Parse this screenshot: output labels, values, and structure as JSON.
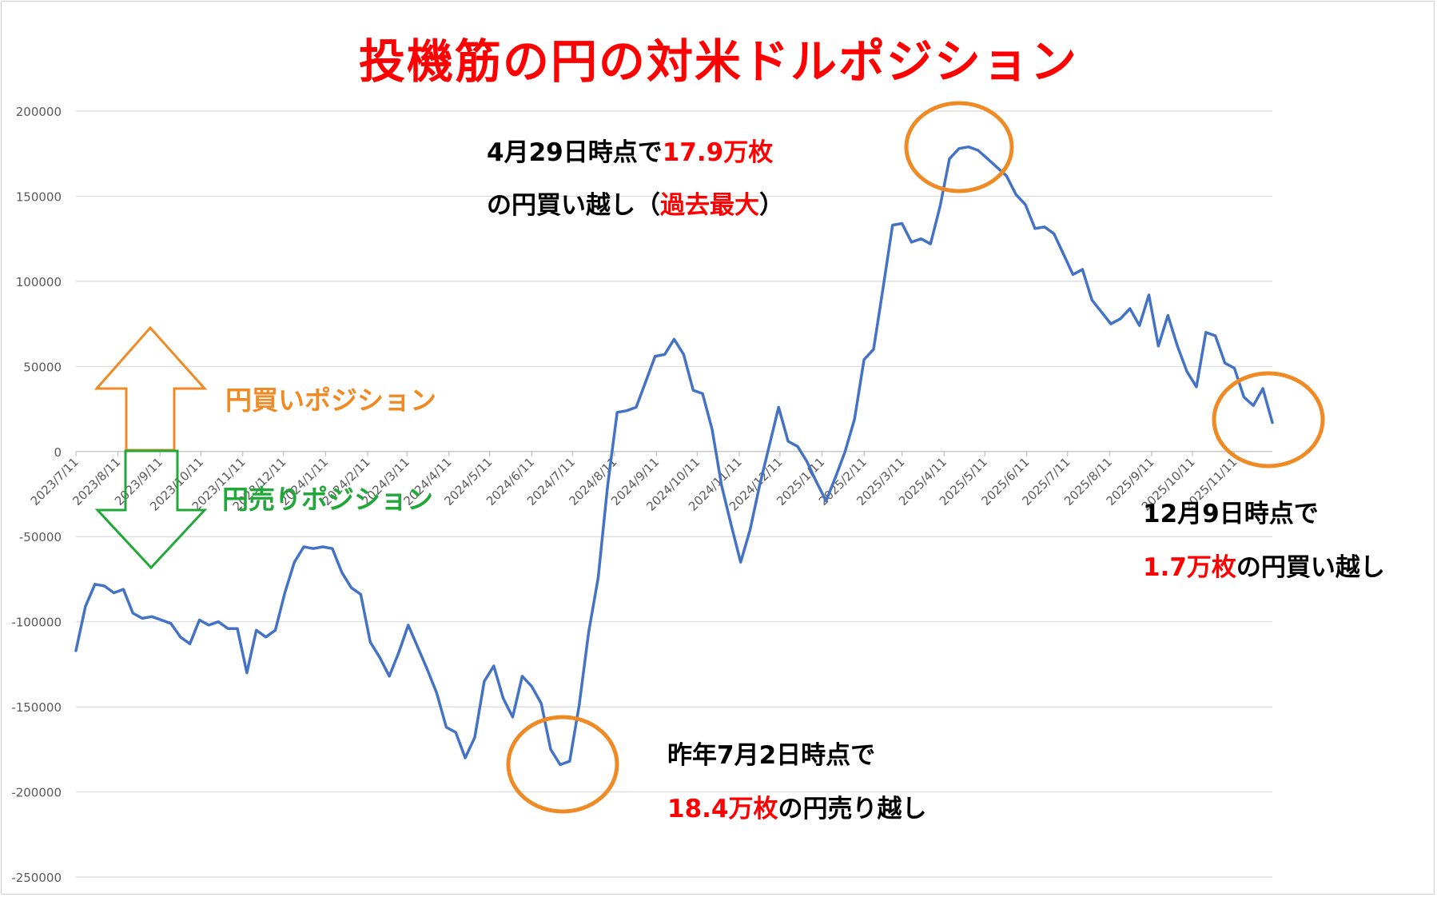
{
  "chart_data": {
    "type": "line",
    "title": "投機筋の円の対米ドルポジション",
    "ylim": [
      -250000,
      200000
    ],
    "y_ticks": [
      200000,
      150000,
      100000,
      50000,
      0,
      -50000,
      -100000,
      -150000,
      -200000,
      -250000
    ],
    "x_tick_labels": [
      "2023/7/11",
      "2023/8/11",
      "2023/9/11",
      "2023/10/11",
      "2023/11/11",
      "2023/12/11",
      "2024/1/11",
      "2024/2/11",
      "2024/3/11",
      "2024/4/11",
      "2024/5/11",
      "2024/6/11",
      "2024/7/11",
      "2024/8/11",
      "2024/9/11",
      "2024/10/11",
      "2024/11/11",
      "2024/12/11",
      "2025/1/11",
      "2025/2/11",
      "2025/3/11",
      "2025/4/11",
      "2025/5/11",
      "2025/6/11",
      "2025/7/11",
      "2025/8/11",
      "2025/9/11",
      "2025/10/11",
      "2025/11/11"
    ],
    "x_start": "2023/7/11",
    "x_end": "2025/12/9",
    "grid": true,
    "series": [
      {
        "color": "#4472c4",
        "x": [
          "2023/7/11",
          "2023/7/18",
          "2023/7/25",
          "2023/8/1",
          "2023/8/8",
          "2023/8/15",
          "2023/8/22",
          "2023/8/29",
          "2023/9/5",
          "2023/9/12",
          "2023/9/19",
          "2023/9/26",
          "2023/10/3",
          "2023/10/10",
          "2023/10/17",
          "2023/10/24",
          "2023/10/31",
          "2023/11/7",
          "2023/11/14",
          "2023/11/21",
          "2023/11/28",
          "2023/12/5",
          "2023/12/12",
          "2023/12/19",
          "2023/12/26",
          "2024/1/2",
          "2024/1/9",
          "2024/1/16",
          "2024/1/23",
          "2024/1/30",
          "2024/2/6",
          "2024/2/13",
          "2024/2/20",
          "2024/2/27",
          "2024/3/5",
          "2024/3/12",
          "2024/3/19",
          "2024/3/26",
          "2024/4/2",
          "2024/4/9",
          "2024/4/16",
          "2024/4/23",
          "2024/4/30",
          "2024/5/7",
          "2024/5/14",
          "2024/5/21",
          "2024/5/28",
          "2024/6/4",
          "2024/6/11",
          "2024/6/18",
          "2024/6/25",
          "2024/7/2",
          "2024/7/9",
          "2024/7/16",
          "2024/7/23",
          "2024/7/30",
          "2024/8/6",
          "2024/8/13",
          "2024/8/20",
          "2024/8/27",
          "2024/9/3",
          "2024/9/10",
          "2024/9/17",
          "2024/9/24",
          "2024/10/1",
          "2024/10/8",
          "2024/10/15",
          "2024/10/22",
          "2024/10/29",
          "2024/11/5",
          "2024/11/12",
          "2024/11/19",
          "2024/11/26",
          "2024/12/3",
          "2024/12/10",
          "2024/12/17",
          "2024/12/24",
          "2024/12/31",
          "2025/1/7",
          "2025/1/14",
          "2025/1/21",
          "2025/1/28",
          "2025/2/4",
          "2025/2/11",
          "2025/2/18",
          "2025/2/25",
          "2025/3/4",
          "2025/3/11",
          "2025/3/18",
          "2025/3/25",
          "2025/4/1",
          "2025/4/8",
          "2025/4/15",
          "2025/4/22",
          "2025/4/29",
          "2025/5/6",
          "2025/5/13",
          "2025/5/20",
          "2025/5/27",
          "2025/6/3",
          "2025/6/10",
          "2025/6/17",
          "2025/6/24",
          "2025/7/1",
          "2025/7/8",
          "2025/7/15",
          "2025/7/22",
          "2025/7/29",
          "2025/8/5",
          "2025/8/12",
          "2025/8/19",
          "2025/8/26",
          "2025/9/2",
          "2025/9/9",
          "2025/9/16",
          "2025/9/23",
          "2025/9/30",
          "2025/10/7",
          "2025/10/14",
          "2025/10/21",
          "2025/10/28",
          "2025/11/4",
          "2025/11/11",
          "2025/11/18",
          "2025/11/25",
          "2025/12/2",
          "2025/12/9"
        ],
        "y": [
          -117000,
          -91000,
          -78000,
          -79000,
          -83000,
          -81000,
          -95000,
          -98000,
          -97000,
          -99000,
          -101000,
          -109000,
          -113000,
          -99000,
          -102000,
          -100000,
          -104000,
          -104000,
          -130000,
          -105000,
          -109000,
          -105000,
          -83000,
          -65000,
          -56000,
          -57000,
          -56000,
          -57000,
          -71000,
          -80000,
          -84000,
          -112000,
          -121000,
          -132000,
          -118000,
          -102000,
          -115000,
          -128000,
          -142000,
          -162000,
          -165000,
          -180000,
          -168000,
          -135000,
          -126000,
          -145000,
          -156000,
          -132000,
          -138000,
          -148000,
          -175000,
          -184000,
          -182000,
          -149000,
          -106000,
          -74000,
          -20000,
          23000,
          24000,
          26000,
          41000,
          56000,
          57000,
          66000,
          57000,
          36000,
          34000,
          13000,
          -20000,
          -43000,
          -65000,
          -46000,
          -20000,
          3000,
          26000,
          6000,
          3000,
          -6000,
          -18000,
          -29000,
          -15000,
          0,
          19000,
          54000,
          60000,
          96000,
          133000,
          134000,
          123000,
          125000,
          122000,
          144000,
          172000,
          178000,
          179000,
          177000,
          172000,
          167000,
          162000,
          151000,
          145000,
          131000,
          132000,
          128000,
          116000,
          104000,
          107000,
          89000,
          82000,
          75000,
          78000,
          84000,
          74000,
          92000,
          62000,
          80000,
          62000,
          47000,
          38000,
          70000,
          68000,
          52000,
          49000,
          32000,
          27000,
          37000,
          17000
        ]
      }
    ]
  },
  "annotations": {
    "peak_line1_prefix": "4月29日時点で",
    "peak_line1_value": "17.9万枚",
    "peak_line2_prefix": "の円買い越し（",
    "peak_line2_value": "過去最大",
    "peak_line2_suffix": "）",
    "trough_line1": "昨年7月2日時点で",
    "trough_line2_value": "18.4万枚",
    "trough_line2_suffix": "の円売り越し",
    "latest_line1": "12月9日時点で",
    "latest_line2_value": "1.7万枚",
    "latest_line2_suffix": "の円買い越し"
  },
  "legend_arrows": {
    "buy_label": "円買いポジション",
    "sell_label": "円売りポジション"
  },
  "colors": {
    "line": "#4472c4",
    "title": "#ff0000",
    "highlight": "#ff0000",
    "circle": "#f08a24",
    "buy_arrow": "#f08a24",
    "sell_arrow": "#22a83a",
    "grid": "#d9d9d9",
    "axis_text": "#595959"
  }
}
